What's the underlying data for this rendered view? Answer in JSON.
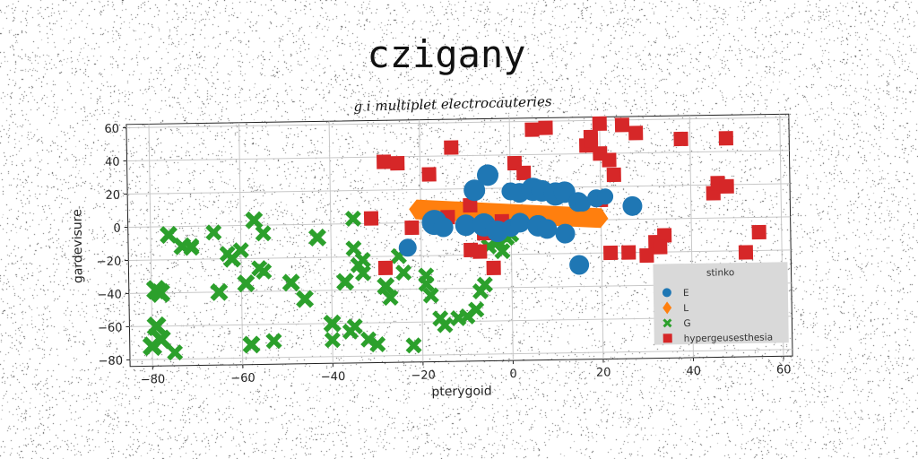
{
  "page": {
    "title": "czigany"
  },
  "chart_data": {
    "type": "scatter",
    "subtitle": "g i multiplet electrocauteries",
    "xlabel": "pterygoid",
    "ylabel": "gardevisure",
    "xlim": [
      -85,
      62
    ],
    "ylim": [
      -84,
      62
    ],
    "xticks": [
      -80,
      -60,
      -40,
      -20,
      0,
      20,
      40,
      60
    ],
    "yticks": [
      -80,
      -60,
      -40,
      -20,
      0,
      20,
      40,
      60
    ],
    "xtick_labels": [
      "−80",
      "−60",
      "−40",
      "−20",
      "0",
      "20",
      "40",
      "60"
    ],
    "ytick_labels": [
      "−80",
      "−60",
      "−40",
      "−20",
      "0",
      "20",
      "40",
      "60"
    ],
    "grid": true,
    "legend": {
      "title": "stinko",
      "placement": "lower-right"
    },
    "series": [
      {
        "name": "E",
        "marker": "circle",
        "color": "#1f77b4",
        "x": [
          -8,
          -5,
          0,
          2,
          5,
          7,
          10,
          12,
          15,
          16,
          19,
          21,
          27,
          -17,
          -15,
          -10,
          -6,
          -4,
          -3,
          0,
          2,
          6,
          8,
          12,
          15,
          -23
        ],
        "y": [
          19,
          28,
          18,
          17,
          19,
          18,
          16,
          17,
          11,
          10,
          13,
          14,
          8,
          0,
          -3,
          -2,
          -2,
          -5,
          -6,
          -4,
          -1,
          -3,
          -5,
          -8,
          -27,
          -15
        ],
        "sizes": [
          12,
          12,
          10,
          11,
          13,
          12,
          13,
          12,
          11,
          9,
          10,
          9,
          11,
          14,
          11,
          12,
          13,
          9,
          12,
          10,
          11,
          12,
          11,
          11,
          11,
          10
        ]
      },
      {
        "name": "L",
        "marker": "diamond",
        "color": "#ff7f0e",
        "band": {
          "x0": -21,
          "y0": 8,
          "x1": 20,
          "y1": 1
        }
      },
      {
        "name": "G",
        "marker": "x",
        "color": "#2ca02c",
        "x": [
          -79,
          -78,
          -79,
          -78,
          -80,
          -76,
          -73,
          -71,
          -66,
          -65,
          -63,
          -62,
          -60,
          -59,
          -57,
          -55,
          -58,
          -56,
          -53,
          -49,
          -46,
          -43,
          -40,
          -40,
          -37,
          -35,
          -35,
          -33,
          -32,
          -36,
          -35,
          -34,
          -33,
          -30,
          -28,
          -27,
          -25,
          -24,
          -22,
          -19,
          -19,
          -18,
          -16,
          -15,
          -12,
          -10,
          -8,
          -7,
          -6,
          -5,
          -3,
          -2,
          -1,
          0,
          -75,
          -71,
          -55
        ],
        "y": [
          -38,
          -40,
          -60,
          -68,
          -72,
          -5,
          -12,
          -13,
          -4,
          -40,
          -17,
          -20,
          -15,
          -35,
          3,
          -5,
          -72,
          -26,
          -70,
          -35,
          -45,
          -8,
          -60,
          -70,
          -35,
          3,
          -15,
          -22,
          -70,
          -65,
          -62,
          -25,
          -30,
          -73,
          -38,
          -45,
          -20,
          -30,
          -74,
          -32,
          -37,
          -44,
          -58,
          -62,
          -58,
          -57,
          -53,
          -42,
          -38,
          -15,
          -12,
          -18,
          -10,
          -8,
          -76,
          -12,
          -28
        ],
        "sizes": [
          11,
          11,
          11,
          11,
          11,
          10,
          10,
          9,
          9,
          10,
          9,
          10,
          9,
          10,
          10,
          9,
          10,
          9,
          9,
          10,
          10,
          10,
          10,
          9,
          10,
          9,
          9,
          9,
          9,
          9,
          9,
          9,
          9,
          9,
          10,
          9,
          9,
          9,
          9,
          9,
          9,
          9,
          9,
          9,
          9,
          9,
          9,
          9,
          9,
          9,
          9,
          9,
          9,
          9,
          9,
          9,
          9
        ]
      },
      {
        "name": "hypergeusesthesia",
        "marker": "square",
        "color": "#d62728",
        "x": [
          -28,
          -25,
          -22,
          -18,
          -13,
          -9,
          -7,
          -4,
          -2,
          1,
          5,
          8,
          17,
          18,
          18,
          20,
          20,
          22,
          23,
          25,
          28,
          32,
          34,
          38,
          45,
          46,
          48,
          48,
          52,
          55,
          -31,
          -28,
          -14,
          -9,
          -6,
          3,
          20,
          22,
          26,
          30,
          33
        ],
        "y": [
          37,
          36,
          -3,
          29,
          45,
          10,
          -18,
          -28,
          0,
          35,
          55,
          56,
          45,
          50,
          48,
          58,
          40,
          36,
          27,
          57,
          52,
          -14,
          -10,
          48,
          15,
          21,
          48,
          19,
          -21,
          -9,
          3,
          -27,
          3,
          -17,
          -7,
          29,
          12,
          -20,
          -20,
          -22,
          -17
        ],
        "sizes": [
          8,
          8,
          8,
          8,
          8,
          8,
          8,
          8,
          8,
          8,
          8,
          8,
          8,
          8,
          8,
          8,
          8,
          8,
          8,
          8,
          8,
          8,
          8,
          8,
          8,
          8,
          8,
          8,
          8,
          8,
          8,
          8,
          8,
          8,
          8,
          8,
          8,
          8,
          8,
          8,
          8
        ]
      }
    ]
  }
}
